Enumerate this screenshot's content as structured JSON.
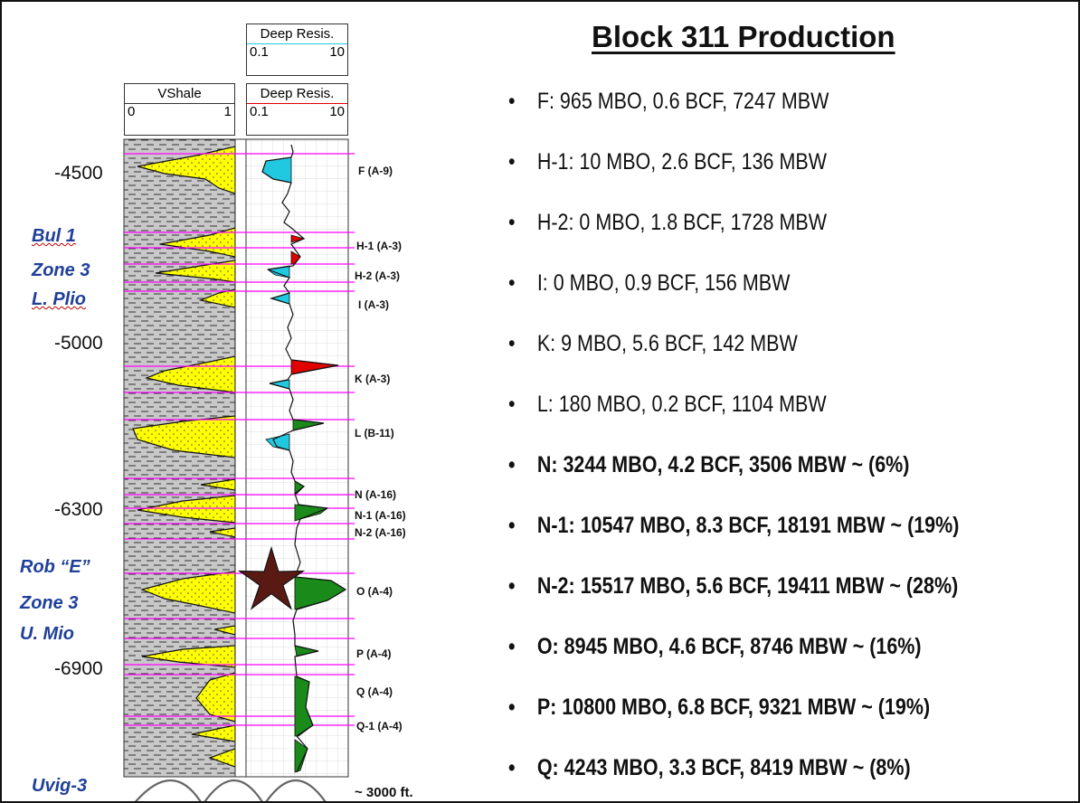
{
  "title": "Block 311 Production",
  "log": {
    "vshale_header": {
      "name": "VShale",
      "min": "0",
      "max": "1"
    },
    "resis_header_top": {
      "name": "Deep Resis.",
      "min": "0.1",
      "max": "10"
    },
    "resis_header": {
      "name": "Deep Resis.",
      "min": "0.1",
      "max": "10"
    },
    "depths": [
      "-4500",
      "-5000",
      "-6300",
      "-6900"
    ],
    "zone_labels": [
      {
        "lines": [
          "Bul 1",
          "Zone 3",
          "L. Plio"
        ]
      },
      {
        "lines": [
          "Rob “E”",
          "Zone 3",
          "U. Mio"
        ]
      },
      {
        "lines": [
          "Uvig-3"
        ]
      }
    ],
    "sand_labels": [
      "F (A-9)",
      "H-1 (A-3)",
      "H-2 (A-3)",
      "I (A-3)",
      "K (A-3)",
      "L (B-11)",
      "N (A-16)",
      "N-1 (A-16)",
      "N-2 (A-16)",
      "O (A-4)",
      "P (A-4)",
      "Q (A-4)",
      "Q-1 (A-4)"
    ],
    "scale_note": "~ 3000 ft."
  },
  "bullets": [
    {
      "text": "F: 965 MBO, 0.6 BCF, 7247 MBW",
      "bold": false
    },
    {
      "text": "H-1: 10 MBO, 2.6 BCF, 136 MBW",
      "bold": false
    },
    {
      "text": "H-2: 0 MBO, 1.8 BCF, 1728 MBW",
      "bold": false
    },
    {
      "text": "I: 0 MBO, 0.9 BCF, 156 MBW",
      "bold": false
    },
    {
      "text": "K: 9 MBO, 5.6 BCF, 142 MBW",
      "bold": false
    },
    {
      "text": "L: 180 MBO, 0.2 BCF, 1104 MBW",
      "bold": false
    },
    {
      "text": "N: 3244 MBO, 4.2 BCF, 3506 MBW ~ (6%)",
      "bold": true
    },
    {
      "text": "N-1: 10547 MBO, 8.3 BCF, 18191 MBW ~ (19%)",
      "bold": true
    },
    {
      "text": "N-2: 15517 MBO, 5.6 BCF, 19411 MBW ~ (28%)",
      "bold": true
    },
    {
      "text": "O: 8945 MBO, 4.6 BCF, 8746 MBW ~ (16%)",
      "bold": true
    },
    {
      "text": "P: 10800 MBO, 6.8 BCF, 9321 MBW ~ (19%)",
      "bold": true
    },
    {
      "text": "Q: 4243 MBO, 3.3 BCF, 8419 MBW ~ (8%)",
      "bold": true
    }
  ],
  "colors": {
    "sand": "#ffff00",
    "shale": "#c8c8c8",
    "zone_line": "#ff00ff",
    "resis_cyan": "#20c8e0",
    "resis_red": "#e00000",
    "resis_green": "#1a8a1a",
    "star": "#5a1a14",
    "zone_text": "#1f3f99"
  },
  "icons": {
    "marker": "star-icon"
  }
}
